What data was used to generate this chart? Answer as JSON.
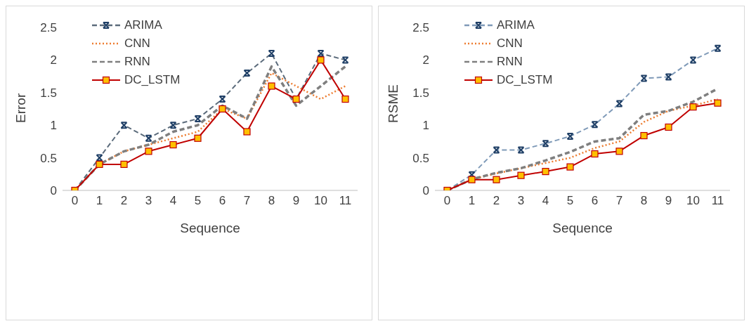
{
  "chart_data": [
    {
      "type": "line",
      "xlabel": "Sequence",
      "ylabel": "Error",
      "categories": [
        "0",
        "1",
        "2",
        "3",
        "4",
        "5",
        "6",
        "7",
        "8",
        "9",
        "10",
        "11"
      ],
      "ylim": [
        0,
        2.5
      ],
      "yticks": [
        0,
        0.5,
        1,
        1.5,
        2,
        2.5
      ],
      "grid": false,
      "legend": "top left",
      "series": [
        {
          "name": "ARIMA",
          "color": "#5b6b7b",
          "line_style": "dashed",
          "marker": "cross",
          "values": [
            0,
            0.5,
            1.0,
            0.8,
            1.0,
            1.1,
            1.4,
            1.8,
            2.1,
            1.4,
            2.1,
            2.0
          ]
        },
        {
          "name": "CNN",
          "color": "#ed7d31",
          "line_style": "dotted",
          "marker": "none",
          "values": [
            0,
            0.4,
            0.6,
            0.7,
            0.8,
            0.9,
            1.25,
            1.1,
            1.8,
            1.6,
            1.4,
            1.6
          ]
        },
        {
          "name": "RNN",
          "color": "#7f7f7f",
          "line_style": "dashed",
          "marker": "none",
          "values": [
            0,
            0.4,
            0.6,
            0.7,
            0.9,
            1.0,
            1.3,
            1.1,
            1.9,
            1.3,
            1.6,
            1.9
          ]
        },
        {
          "name": "DC_LSTM",
          "color": "#c00000",
          "line_style": "solid",
          "marker": "square",
          "values": [
            0,
            0.4,
            0.4,
            0.6,
            0.7,
            0.8,
            1.25,
            0.9,
            1.6,
            1.4,
            2.0,
            1.4
          ]
        }
      ]
    },
    {
      "type": "line",
      "xlabel": "Sequence",
      "ylabel": "RSME",
      "categories": [
        "0",
        "1",
        "2",
        "3",
        "4",
        "5",
        "6",
        "7",
        "8",
        "9",
        "10",
        "11"
      ],
      "ylim": [
        0,
        2.5
      ],
      "yticks": [
        0,
        0.5,
        1,
        1.5,
        2,
        2.5
      ],
      "grid": false,
      "legend": "top left",
      "series": [
        {
          "name": "ARIMA",
          "color": "#7f9ab8",
          "line_style": "dashed",
          "marker": "cross",
          "values": [
            0,
            0.24,
            0.62,
            0.62,
            0.72,
            0.83,
            1.01,
            1.33,
            1.72,
            1.74,
            2.0,
            2.18
          ]
        },
        {
          "name": "CNN",
          "color": "#ed7d31",
          "line_style": "dotted",
          "marker": "none",
          "values": [
            0,
            0.17,
            0.26,
            0.34,
            0.42,
            0.5,
            0.65,
            0.75,
            1.05,
            1.22,
            1.3,
            1.4
          ]
        },
        {
          "name": "RNN",
          "color": "#7f7f7f",
          "line_style": "dashed",
          "marker": "none",
          "values": [
            0,
            0.17,
            0.27,
            0.34,
            0.46,
            0.59,
            0.75,
            0.8,
            1.16,
            1.22,
            1.36,
            1.56
          ]
        },
        {
          "name": "DC_LSTM",
          "color": "#c00000",
          "line_style": "solid",
          "marker": "square",
          "values": [
            0,
            0.165,
            0.165,
            0.23,
            0.29,
            0.36,
            0.56,
            0.6,
            0.84,
            0.97,
            1.28,
            1.34
          ]
        }
      ]
    }
  ]
}
